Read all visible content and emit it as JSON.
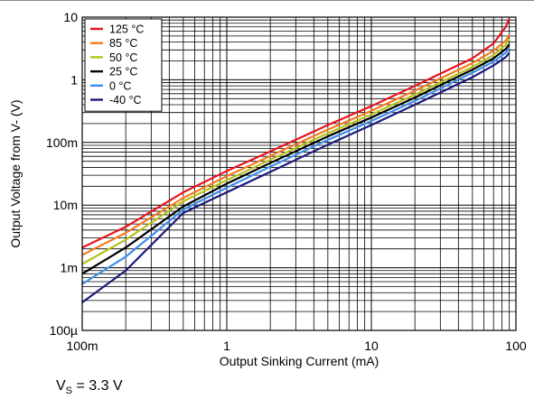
{
  "chart_data": {
    "type": "line",
    "x_scale": "log",
    "y_scale": "log",
    "xlabel": "Output Sinking Current (mA)",
    "ylabel": "Output Voltage from V- (V)",
    "xlim": [
      0.1,
      100
    ],
    "ylim": [
      0.0001,
      10
    ],
    "grid": true,
    "legend": "top-left",
    "x_ticks": [
      {
        "value": 0.1,
        "label": "100m"
      },
      {
        "value": 1,
        "label": "1"
      },
      {
        "value": 10,
        "label": "10"
      },
      {
        "value": 100,
        "label": "100"
      }
    ],
    "y_ticks": [
      {
        "value": 0.0001,
        "label": "100µ"
      },
      {
        "value": 0.001,
        "label": "1m"
      },
      {
        "value": 0.01,
        "label": "10m"
      },
      {
        "value": 0.1,
        "label": "100m"
      },
      {
        "value": 1,
        "label": "1"
      },
      {
        "value": 10,
        "label": "10"
      }
    ],
    "series": [
      {
        "name": "125 °C",
        "color": "#e8141c",
        "x": [
          0.1,
          0.2,
          0.5,
          1,
          2,
          5,
          10,
          20,
          50,
          70,
          85,
          90
        ],
        "y": [
          0.0021,
          0.0045,
          0.016,
          0.035,
          0.072,
          0.19,
          0.38,
          0.8,
          2.2,
          3.8,
          7,
          9.5
        ]
      },
      {
        "name": "85 °C",
        "color": "#f47b20",
        "x": [
          0.1,
          0.2,
          0.5,
          1,
          2,
          5,
          10,
          20,
          50,
          70,
          85,
          90
        ],
        "y": [
          0.0016,
          0.0036,
          0.013,
          0.029,
          0.061,
          0.16,
          0.32,
          0.67,
          1.85,
          2.9,
          4.2,
          5.2
        ]
      },
      {
        "name": "50 °C",
        "color": "#b5c21a",
        "x": [
          0.1,
          0.2,
          0.5,
          1,
          2,
          5,
          10,
          20,
          50,
          70,
          85,
          90
        ],
        "y": [
          0.00115,
          0.0028,
          0.0115,
          0.025,
          0.053,
          0.14,
          0.28,
          0.58,
          1.6,
          2.5,
          3.6,
          4.5
        ]
      },
      {
        "name": "25 °C",
        "color": "#000000",
        "x": [
          0.1,
          0.2,
          0.5,
          1,
          2,
          5,
          10,
          20,
          50,
          70,
          85,
          90
        ],
        "y": [
          0.0008,
          0.0021,
          0.0095,
          0.022,
          0.047,
          0.125,
          0.25,
          0.52,
          1.45,
          2.2,
          3.1,
          3.7
        ]
      },
      {
        "name": "0 °C",
        "color": "#3c8ee6",
        "x": [
          0.1,
          0.2,
          0.5,
          1,
          2,
          5,
          10,
          20,
          50,
          70,
          85,
          90
        ],
        "y": [
          0.00055,
          0.0015,
          0.0085,
          0.019,
          0.041,
          0.11,
          0.22,
          0.46,
          1.3,
          1.95,
          2.7,
          3.2
        ]
      },
      {
        "name": "-40 °C",
        "color": "#1a1a7e",
        "x": [
          0.1,
          0.2,
          0.5,
          1,
          2,
          5,
          10,
          20,
          50,
          70,
          85,
          90
        ],
        "y": [
          0.00028,
          0.0009,
          0.0075,
          0.016,
          0.034,
          0.092,
          0.19,
          0.4,
          1.1,
          1.7,
          2.3,
          2.7
        ]
      }
    ]
  },
  "note": {
    "prefix": "V",
    "subscript": "S",
    "suffix": " = 3.3 V"
  }
}
